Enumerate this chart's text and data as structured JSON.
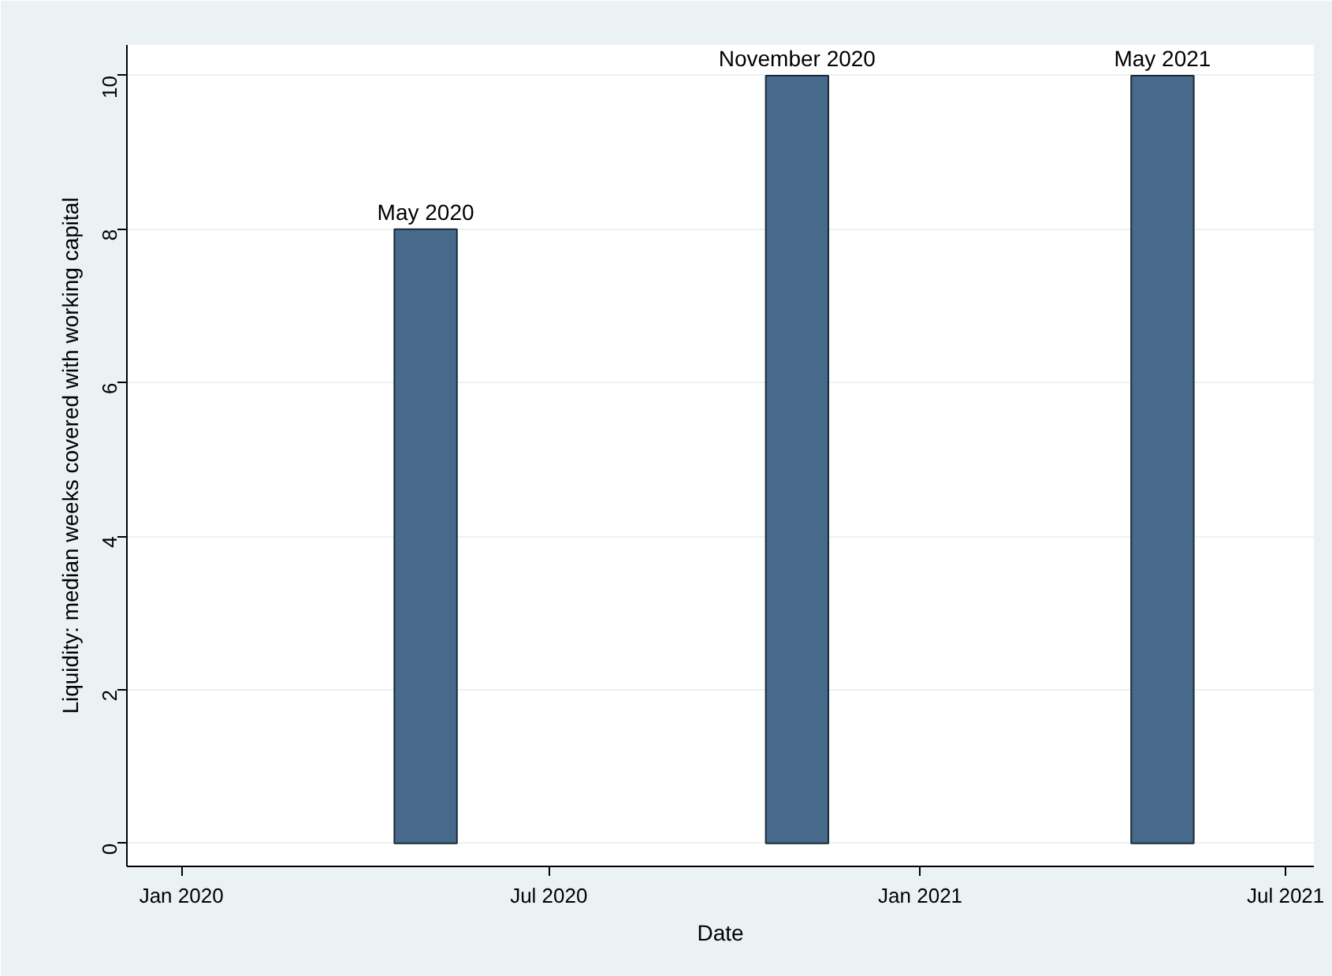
{
  "chart_data": {
    "type": "bar",
    "xlabel": "Date",
    "ylabel": "Liquidity: median weeks covered with working capital",
    "x": [
      "2020-05",
      "2020-11",
      "2021-05"
    ],
    "values": [
      8,
      10,
      10
    ],
    "color": "#476a8a",
    "xlim": [
      "2019-12-05",
      "2021-07-15"
    ],
    "xticks": [
      {
        "value": "2020-01",
        "label": "Jan 2020"
      },
      {
        "value": "2020-07",
        "label": "Jul 2020"
      },
      {
        "value": "2021-01",
        "label": "Jan 2021"
      },
      {
        "value": "2021-07",
        "label": "Jul 2021"
      }
    ],
    "ylim": [
      -0.3,
      10.4
    ],
    "yticks": [
      0,
      2,
      4,
      6,
      8,
      10
    ],
    "grid": "y",
    "annotations": [
      {
        "text": "May 2020",
        "x": "2020-05",
        "y": 8
      },
      {
        "text": "November 2020",
        "x": "2020-11",
        "y": 10
      },
      {
        "text": "May 2021",
        "x": "2021-05",
        "y": 10
      }
    ]
  }
}
